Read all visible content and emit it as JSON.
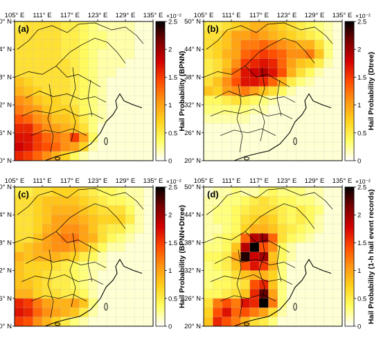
{
  "figure": {
    "lon_ticks": [
      "105° E",
      "111° E",
      "117° E",
      "123° E",
      "129° E",
      "135° E"
    ],
    "lat_ticks": [
      "50° N",
      "44° N",
      "38° N",
      "32° N",
      "26° N",
      "20° N"
    ],
    "colorbar_ticks": [
      "2.5",
      "2",
      "1.5",
      "1",
      "0.5",
      "0"
    ],
    "colorbar_exponent": "×10⁻²",
    "colors": {
      "ramp": [
        "#ffffff",
        "#ffff66",
        "#ffd21e",
        "#ff9612",
        "#ff4a00",
        "#d20000",
        "#7a0000",
        "#000000"
      ],
      "grid": "#bdbdbd",
      "border": "#000000",
      "axis": "#000000"
    }
  },
  "chart_data": [
    {
      "type": "heatmap",
      "panel_label": "(a)",
      "colorbar_label": "Hail Probability (BPNN)",
      "xlabel": "",
      "ylabel": "",
      "lon_range": [
        105,
        135
      ],
      "lat_range": [
        20,
        50
      ],
      "clim": [
        0,
        0.025
      ],
      "grid": true,
      "values_1e-2": [
        [
          0.5,
          0.6,
          0.6,
          0.6,
          0.6,
          0.5,
          0.5,
          0.4,
          0.3,
          0.2,
          0.2,
          0.2,
          0.2,
          0.1,
          0.1
        ],
        [
          0.6,
          0.6,
          0.6,
          0.6,
          0.6,
          0.5,
          0.5,
          0.4,
          0.3,
          0.3,
          0.2,
          0.2,
          0.2,
          0.1,
          0.1
        ],
        [
          0.6,
          0.6,
          0.6,
          0.6,
          0.6,
          0.5,
          0.5,
          0.4,
          0.3,
          0.3,
          0.2,
          0.2,
          0.2,
          0.1,
          0.1
        ],
        [
          0.6,
          0.6,
          0.6,
          0.6,
          0.6,
          0.5,
          0.5,
          0.4,
          0.3,
          0.2,
          0.2,
          0.2,
          0.2,
          0.1,
          0.1
        ],
        [
          0.6,
          0.6,
          0.6,
          0.6,
          0.6,
          0.6,
          0.5,
          0.4,
          0.3,
          0.2,
          0.2,
          0.2,
          0.1,
          0.1,
          0.1
        ],
        [
          0.6,
          0.6,
          0.6,
          0.6,
          0.6,
          0.6,
          0.5,
          0.4,
          0.3,
          0.2,
          0.2,
          0.1,
          0.1,
          0.1,
          0.1
        ],
        [
          0.8,
          0.7,
          0.6,
          0.6,
          0.6,
          0.6,
          0.5,
          0.4,
          0.3,
          0.2,
          0.1,
          0.1,
          0.1,
          0.1,
          0.1
        ],
        [
          0.9,
          0.8,
          0.7,
          0.6,
          0.6,
          0.6,
          0.5,
          0.4,
          0.3,
          0.2,
          0.1,
          0.1,
          0.1,
          0.1,
          0.1
        ],
        [
          1.1,
          1.0,
          0.8,
          0.7,
          0.7,
          0.6,
          0.5,
          0.4,
          0.3,
          0.2,
          0.1,
          0.1,
          0.1,
          0.1,
          0.1
        ],
        [
          1.2,
          1.1,
          1.0,
          0.8,
          0.7,
          0.7,
          0.6,
          0.4,
          0.3,
          0.2,
          0.1,
          0.1,
          0.1,
          0.1,
          0.1
        ],
        [
          1.4,
          1.3,
          1.1,
          1.0,
          0.8,
          0.8,
          0.7,
          0.5,
          0.3,
          0.2,
          0.1,
          0.1,
          0.1,
          0.1,
          0.1
        ],
        [
          1.6,
          1.6,
          1.3,
          1.1,
          1.0,
          0.9,
          0.8,
          0.6,
          0.3,
          0.1,
          0.1,
          0.1,
          0.1,
          0.1,
          0.1
        ],
        [
          1.7,
          1.7,
          1.5,
          1.3,
          1.2,
          1.1,
          1.5,
          1.0,
          0.4,
          0.1,
          0.1,
          0.1,
          0.1,
          0.1,
          0.1
        ],
        [
          1.8,
          1.7,
          1.5,
          1.4,
          1.3,
          1.1,
          1.0,
          0.7,
          0.2,
          0.1,
          0.1,
          0.1,
          0.1,
          0.1,
          0.1
        ],
        [
          1.6,
          1.5,
          1.3,
          1.1,
          0.9,
          0.7,
          0.4,
          0.2,
          0.1,
          0.1,
          0.1,
          0.1,
          0.1,
          0.1,
          0.1
        ]
      ]
    },
    {
      "type": "heatmap",
      "panel_label": "(b)",
      "colorbar_label": "Hail Probability (Dtree)",
      "xlabel": "",
      "ylabel": "",
      "lon_range": [
        105,
        135
      ],
      "lat_range": [
        20,
        50
      ],
      "clim": [
        0,
        0.025
      ],
      "grid": true,
      "values_1e-2": [
        [
          0.5,
          0.5,
          0.6,
          0.7,
          0.8,
          0.9,
          0.9,
          0.8,
          0.7,
          0.6,
          0.5,
          0.4,
          0.3,
          0.2,
          0.1
        ],
        [
          0.6,
          0.6,
          0.8,
          1.0,
          1.0,
          1.1,
          1.0,
          0.9,
          0.8,
          0.7,
          0.6,
          0.5,
          0.4,
          0.2,
          0.1
        ],
        [
          0.6,
          0.7,
          0.8,
          1.0,
          1.2,
          1.2,
          1.3,
          1.2,
          1.1,
          1.0,
          0.9,
          0.9,
          0.6,
          0.3,
          0.1
        ],
        [
          0.6,
          0.7,
          0.9,
          1.0,
          1.3,
          1.4,
          1.5,
          1.4,
          1.3,
          1.1,
          1.1,
          1.2,
          0.8,
          0.3,
          0.1
        ],
        [
          0.5,
          0.6,
          0.8,
          1.1,
          1.5,
          1.6,
          1.7,
          1.6,
          1.3,
          1.0,
          0.8,
          0.7,
          0.5,
          0.2,
          0.1
        ],
        [
          0.5,
          0.6,
          0.9,
          1.3,
          1.7,
          1.8,
          1.9,
          1.7,
          1.4,
          0.9,
          0.6,
          0.4,
          0.2,
          0.1,
          0.1
        ],
        [
          0.6,
          0.8,
          1.1,
          1.4,
          1.7,
          1.7,
          1.6,
          1.3,
          0.9,
          0.5,
          0.3,
          0.2,
          0.1,
          0.1,
          0.1
        ],
        [
          0.8,
          0.7,
          1.0,
          1.1,
          1.2,
          1.0,
          0.8,
          0.6,
          0.4,
          0.2,
          0.1,
          0.1,
          0.1,
          0.1,
          0.1
        ],
        [
          0.4,
          0.4,
          0.5,
          0.6,
          0.5,
          0.4,
          0.3,
          0.2,
          0.1,
          0.1,
          0.1,
          0.1,
          0.1,
          0.1,
          0.1
        ],
        [
          0.3,
          0.3,
          0.3,
          0.3,
          0.3,
          0.2,
          0.2,
          0.1,
          0.1,
          0.1,
          0.1,
          0.1,
          0.1,
          0.1,
          0.1
        ],
        [
          0.2,
          0.2,
          0.2,
          0.2,
          0.2,
          0.1,
          0.1,
          0.1,
          0.1,
          0.1,
          0.1,
          0.1,
          0.1,
          0.1,
          0.1
        ],
        [
          0.1,
          0.1,
          0.1,
          0.1,
          0.1,
          0.1,
          0.1,
          0.1,
          0.1,
          0.1,
          0.1,
          0.1,
          0.1,
          0.1,
          0.1
        ],
        [
          0.1,
          0.1,
          0.1,
          0.1,
          0.1,
          0.1,
          0.1,
          0.1,
          0.1,
          0.1,
          0.1,
          0.1,
          0.1,
          0.1,
          0.1
        ],
        [
          0.1,
          0.1,
          0.1,
          0.1,
          0.1,
          0.1,
          0.1,
          0.1,
          0.1,
          0.1,
          0.1,
          0.1,
          0.1,
          0.1,
          0.1
        ],
        [
          0.1,
          0.1,
          0.1,
          0.1,
          0.1,
          0.1,
          0.1,
          0.1,
          0.1,
          0.1,
          0.1,
          0.1,
          0.1,
          0.1,
          0.1
        ]
      ]
    },
    {
      "type": "heatmap",
      "panel_label": "(c)",
      "colorbar_label": "Hail Probability (BPNN+Dtree)",
      "xlabel": "",
      "ylabel": "",
      "lon_range": [
        105,
        135
      ],
      "lat_range": [
        20,
        50
      ],
      "clim": [
        0,
        0.025
      ],
      "grid": true,
      "values_1e-2": [
        [
          0.5,
          0.5,
          0.6,
          0.6,
          0.7,
          0.7,
          0.7,
          0.6,
          0.5,
          0.4,
          0.4,
          0.3,
          0.2,
          0.2,
          0.1
        ],
        [
          0.6,
          0.6,
          0.7,
          0.8,
          0.8,
          0.8,
          0.8,
          0.7,
          0.6,
          0.5,
          0.4,
          0.4,
          0.3,
          0.2,
          0.1
        ],
        [
          0.6,
          0.6,
          0.7,
          0.8,
          0.9,
          0.9,
          0.9,
          0.8,
          0.7,
          0.6,
          0.6,
          0.6,
          0.4,
          0.2,
          0.1
        ],
        [
          0.6,
          0.6,
          0.7,
          0.8,
          1.0,
          1.0,
          1.0,
          0.9,
          0.8,
          0.7,
          0.7,
          0.7,
          0.5,
          0.2,
          0.1
        ],
        [
          0.6,
          0.6,
          0.7,
          0.9,
          1.0,
          1.1,
          1.1,
          1.0,
          0.8,
          0.6,
          0.5,
          0.5,
          0.3,
          0.2,
          0.1
        ],
        [
          0.6,
          0.6,
          0.8,
          1.0,
          1.1,
          1.2,
          1.2,
          1.0,
          0.9,
          0.6,
          0.4,
          0.3,
          0.2,
          0.1,
          0.1
        ],
        [
          0.7,
          0.8,
          0.9,
          1.0,
          1.1,
          1.1,
          1.0,
          0.9,
          0.6,
          0.4,
          0.2,
          0.2,
          0.1,
          0.1,
          0.1
        ],
        [
          0.9,
          0.8,
          0.9,
          0.9,
          0.9,
          0.8,
          0.7,
          0.5,
          0.4,
          0.2,
          0.1,
          0.1,
          0.1,
          0.1,
          0.1
        ],
        [
          0.8,
          0.7,
          0.7,
          0.7,
          0.6,
          0.5,
          0.4,
          0.3,
          0.2,
          0.2,
          0.1,
          0.1,
          0.1,
          0.1,
          0.1
        ],
        [
          0.8,
          0.7,
          0.7,
          0.6,
          0.5,
          0.5,
          0.4,
          0.3,
          0.2,
          0.1,
          0.1,
          0.1,
          0.1,
          0.1,
          0.1
        ],
        [
          0.8,
          0.8,
          0.7,
          0.6,
          0.5,
          0.5,
          0.4,
          0.3,
          0.2,
          0.1,
          0.1,
          0.1,
          0.1,
          0.1,
          0.1
        ],
        [
          0.9,
          0.9,
          0.7,
          0.6,
          0.6,
          0.5,
          0.5,
          0.4,
          0.2,
          0.1,
          0.1,
          0.1,
          0.1,
          0.1,
          0.1
        ],
        [
          1.6,
          1.5,
          1.2,
          1.0,
          0.9,
          0.9,
          1.0,
          0.8,
          0.3,
          0.1,
          0.1,
          0.1,
          0.1,
          0.1,
          0.1
        ],
        [
          1.7,
          1.6,
          1.3,
          1.1,
          1.0,
          0.9,
          0.8,
          0.5,
          0.2,
          0.1,
          0.1,
          0.1,
          0.1,
          0.1,
          0.1
        ],
        [
          1.5,
          1.4,
          1.1,
          0.9,
          0.7,
          0.5,
          0.3,
          0.2,
          0.1,
          0.1,
          0.1,
          0.1,
          0.1,
          0.1,
          0.1
        ]
      ]
    },
    {
      "type": "heatmap",
      "panel_label": "(d)",
      "colorbar_label": "Hail Probability (1-h hail event records)",
      "xlabel": "",
      "ylabel": "",
      "lon_range": [
        105,
        135
      ],
      "lat_range": [
        20,
        50
      ],
      "clim": [
        0,
        0.025
      ],
      "grid": true,
      "values_1e-2": [
        [
          0.1,
          0.2,
          0.2,
          0.3,
          0.2,
          0.2,
          0.3,
          0.4,
          0.3,
          0.3,
          0.3,
          0.2,
          0.2,
          0.1,
          0.1
        ],
        [
          0.2,
          0.2,
          0.3,
          0.3,
          0.4,
          0.5,
          0.6,
          0.5,
          0.4,
          0.4,
          0.3,
          0.3,
          0.2,
          0.1,
          0.1
        ],
        [
          0.2,
          0.3,
          0.3,
          0.4,
          0.5,
          0.6,
          0.6,
          0.6,
          0.5,
          0.4,
          0.5,
          0.4,
          0.3,
          0.1,
          0.1
        ],
        [
          0.2,
          0.3,
          0.3,
          0.4,
          0.6,
          0.7,
          0.8,
          0.7,
          0.5,
          0.4,
          0.5,
          0.4,
          0.2,
          0.1,
          0.1
        ],
        [
          0.2,
          0.2,
          0.3,
          0.4,
          0.7,
          0.9,
          0.9,
          0.8,
          0.6,
          0.5,
          0.4,
          0.3,
          0.2,
          0.1,
          0.1
        ],
        [
          0.2,
          0.3,
          0.4,
          0.5,
          1.3,
          1.9,
          2.0,
          1.3,
          0.6,
          0.4,
          0.3,
          0.2,
          0.1,
          0.1,
          0.1
        ],
        [
          0.3,
          0.3,
          0.4,
          0.8,
          1.9,
          2.5,
          1.4,
          1.1,
          0.4,
          0.2,
          0.1,
          0.1,
          0.1,
          0.1,
          0.1
        ],
        [
          0.4,
          0.4,
          0.5,
          1.0,
          2.4,
          1.8,
          2.0,
          0.8,
          0.4,
          0.2,
          0.1,
          0.1,
          0.1,
          0.1,
          0.1
        ],
        [
          0.3,
          0.4,
          0.5,
          0.8,
          1.4,
          1.7,
          1.5,
          0.9,
          0.3,
          0.1,
          0.1,
          0.1,
          0.1,
          0.1,
          0.1
        ],
        [
          0.3,
          0.3,
          0.4,
          0.6,
          0.8,
          0.9,
          0.9,
          0.7,
          0.3,
          0.1,
          0.1,
          0.1,
          0.1,
          0.1,
          0.1
        ],
        [
          0.3,
          0.4,
          0.4,
          0.5,
          0.6,
          1.4,
          1.6,
          0.8,
          0.3,
          0.1,
          0.1,
          0.1,
          0.1,
          0.1,
          0.1
        ],
        [
          0.4,
          0.4,
          0.5,
          0.6,
          0.8,
          1.6,
          2.2,
          1.0,
          0.3,
          0.1,
          0.1,
          0.1,
          0.1,
          0.1,
          0.1
        ],
        [
          0.6,
          1.2,
          1.4,
          1.2,
          1.7,
          1.6,
          2.5,
          1.2,
          0.3,
          0.1,
          0.1,
          0.1,
          0.1,
          0.1,
          0.1
        ],
        [
          0.7,
          1.4,
          1.7,
          1.3,
          1.4,
          1.2,
          1.0,
          0.6,
          0.2,
          0.1,
          0.1,
          0.1,
          0.1,
          0.1,
          0.1
        ],
        [
          0.8,
          1.6,
          1.4,
          1.2,
          0.9,
          0.6,
          0.5,
          0.3,
          0.1,
          0.1,
          0.1,
          0.1,
          0.1,
          0.1,
          0.1
        ]
      ]
    }
  ]
}
